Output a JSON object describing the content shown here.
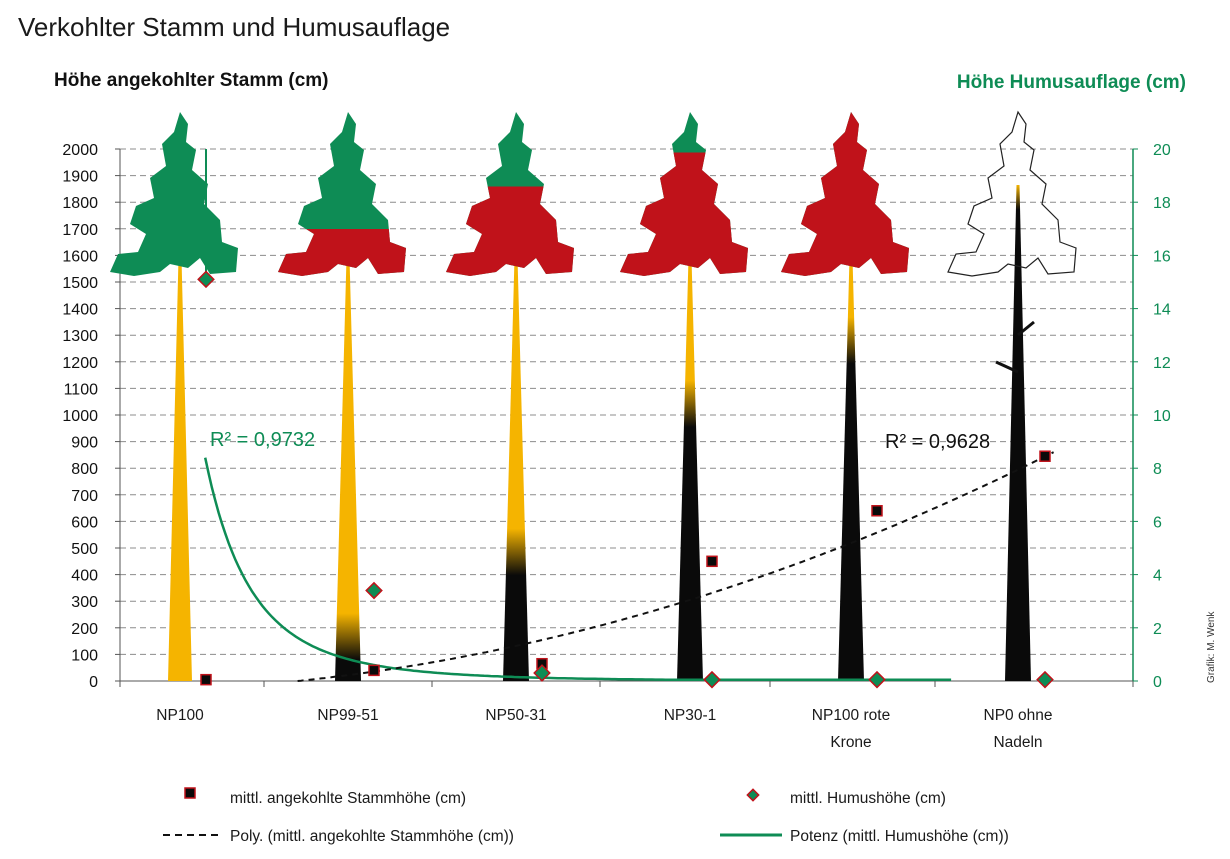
{
  "title": "Verkohlter Stamm und Humusauflage",
  "colors": {
    "green": "#0e8c55",
    "red": "#c0121a",
    "yellow": "#f5b400",
    "black": "#0a0a0a",
    "grid": "#8c8c8c"
  },
  "chart_data": {
    "type": "scatter",
    "title": "Verkohlter Stamm und Humusauflage",
    "ylabel": "Höhe angekohlter Stamm (cm)",
    "y2label": "Höhe Humusauflage (cm)",
    "ylim": [
      0,
      2000
    ],
    "y2lim": [
      0,
      20
    ],
    "yticks": [
      "0",
      "100",
      "200",
      "300",
      "400",
      "500",
      "600",
      "700",
      "800",
      "900",
      "1000",
      "1100",
      "1200",
      "1300",
      "1400",
      "1500",
      "1600",
      "1700",
      "1800",
      "1900",
      "2000"
    ],
    "y2ticks": [
      "0",
      "2",
      "4",
      "6",
      "8",
      "10",
      "12",
      "14",
      "16",
      "18",
      "20"
    ],
    "grid": true,
    "categories": [
      {
        "line1": "NP100",
        "line2": ""
      },
      {
        "line1": "NP99-51",
        "line2": ""
      },
      {
        "line1": "NP50-31",
        "line2": ""
      },
      {
        "line1": "NP30-1",
        "line2": ""
      },
      {
        "line1": "NP100 rote",
        "line2": "Krone"
      },
      {
        "line1": "NP0 ohne",
        "line2": "Nadeln"
      }
    ],
    "series": [
      {
        "name": "mittl. angekohlte Stammhöhe (cm)",
        "axis": "left",
        "marker": "square",
        "values": [
          5,
          40,
          65,
          450,
          640,
          845
        ]
      },
      {
        "name": "mittl. Humushöhe (cm)",
        "axis": "right",
        "marker": "diamond",
        "values": [
          15.1,
          3.4,
          0.3,
          0.05,
          0.05,
          0.05
        ]
      }
    ],
    "trendlines": [
      {
        "name": "Poly. (mittl. angekohlte Stammhöhe (cm))",
        "kind": "polynomial",
        "axis": "left",
        "r2_label": "R² = 0,9628",
        "style": "dashed"
      },
      {
        "name": "Potenz (mittl. Humushöhe (cm))",
        "kind": "power",
        "axis": "right",
        "r2_label": "R² = 0,9732",
        "style": "solid"
      }
    ],
    "tree_illustration": {
      "charred_share": [
        0.0,
        0.1,
        0.3,
        0.65,
        0.8,
        1.0
      ],
      "crown_state": [
        "green",
        "mostly-green",
        "half-red",
        "mostly-red",
        "red",
        "no-needles"
      ]
    }
  },
  "credit": "Grafik: M. Wenk"
}
